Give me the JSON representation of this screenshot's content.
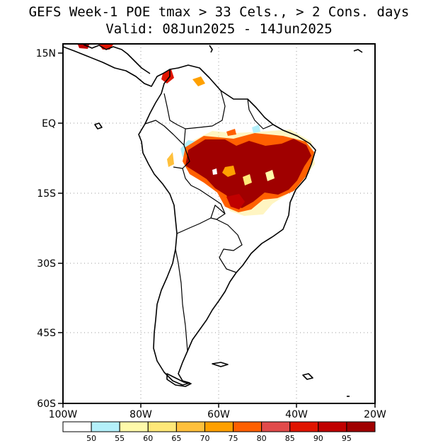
{
  "title": {
    "line1": "GEFS Week-1 POE tmax > 33 Cels., > 2 Cons. days",
    "line2": "Valid: 08Jun2025 - 14Jun2025"
  },
  "map": {
    "lat_labels": [
      "15N",
      "EQ",
      "15S",
      "30S",
      "45S",
      "60S"
    ],
    "lon_labels": [
      "100W",
      "80W",
      "60W",
      "40W",
      "20W"
    ],
    "gridlines": "dotted, every 15° latitude and 20° longitude"
  },
  "colorbar": {
    "ticks": [
      "50",
      "55",
      "60",
      "65",
      "70",
      "75",
      "80",
      "85",
      "90",
      "95"
    ],
    "colors": [
      "#ffffff",
      "#b4f0fa",
      "#fffaaa",
      "#ffe878",
      "#ffc03c",
      "#ffa000",
      "#ff6000",
      "#e14b4b",
      "#e01400",
      "#c00000",
      "#a00000"
    ]
  }
}
